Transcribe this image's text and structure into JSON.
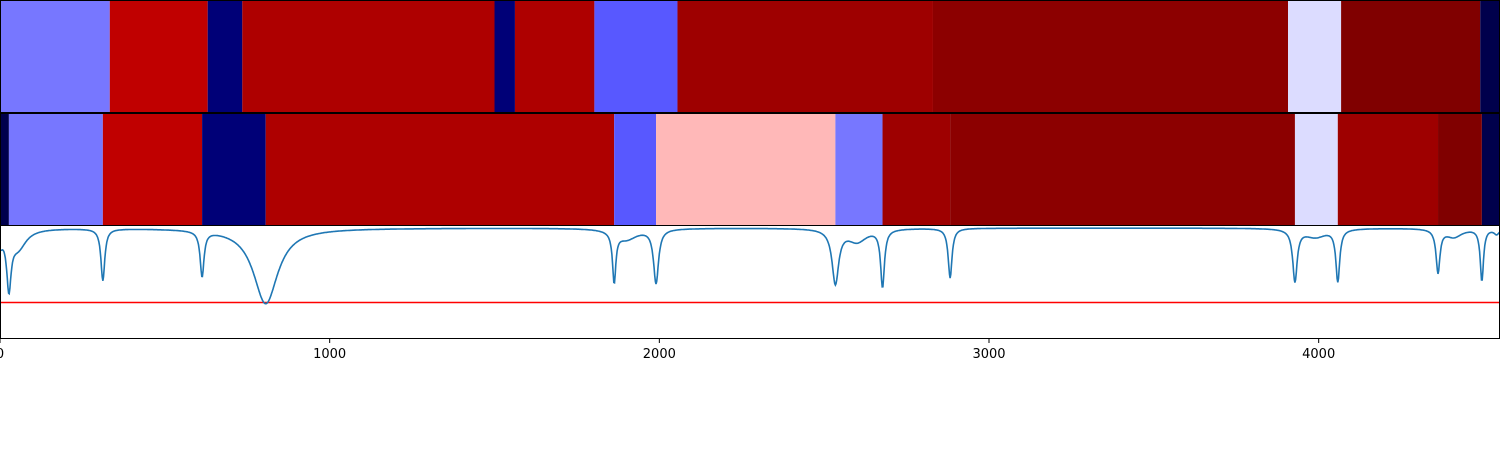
{
  "chart_data": [
    {
      "type": "heatmap",
      "xlim": [
        0,
        4550
      ],
      "segments": [
        {
          "start": 0,
          "end": 333,
          "color": "#7777ff"
        },
        {
          "start": 333,
          "end": 630,
          "color": "#c00000"
        },
        {
          "start": 630,
          "end": 735,
          "color": "#000077"
        },
        {
          "start": 735,
          "end": 1500,
          "color": "#ae0000"
        },
        {
          "start": 1500,
          "end": 1562,
          "color": "#000077"
        },
        {
          "start": 1562,
          "end": 1803,
          "color": "#ae0000"
        },
        {
          "start": 1803,
          "end": 2055,
          "color": "#5858ff"
        },
        {
          "start": 2055,
          "end": 2830,
          "color": "#9e0000"
        },
        {
          "start": 2830,
          "end": 3907,
          "color": "#8c0000"
        },
        {
          "start": 3907,
          "end": 4068,
          "color": "#dcdcff"
        },
        {
          "start": 4068,
          "end": 4490,
          "color": "#800000"
        },
        {
          "start": 4490,
          "end": 4550,
          "color": "#00004c"
        }
      ]
    },
    {
      "type": "heatmap",
      "xlim": [
        0,
        4550
      ],
      "segments": [
        {
          "start": 0,
          "end": 27,
          "color": "#00004c"
        },
        {
          "start": 27,
          "end": 312,
          "color": "#7777ff"
        },
        {
          "start": 312,
          "end": 613,
          "color": "#c00000"
        },
        {
          "start": 613,
          "end": 806,
          "color": "#000077"
        },
        {
          "start": 806,
          "end": 1863,
          "color": "#ae0000"
        },
        {
          "start": 1863,
          "end": 1990,
          "color": "#5858ff"
        },
        {
          "start": 1990,
          "end": 2534,
          "color": "#ffb8b8"
        },
        {
          "start": 2534,
          "end": 2677,
          "color": "#7777ff"
        },
        {
          "start": 2677,
          "end": 2882,
          "color": "#9e0000"
        },
        {
          "start": 2882,
          "end": 3928,
          "color": "#8c0000"
        },
        {
          "start": 3928,
          "end": 4058,
          "color": "#dcdcff"
        },
        {
          "start": 4058,
          "end": 4362,
          "color": "#9e0000"
        },
        {
          "start": 4362,
          "end": 4495,
          "color": "#800000"
        },
        {
          "start": 4495,
          "end": 4550,
          "color": "#00004c"
        }
      ]
    },
    {
      "type": "line",
      "xlim": [
        0,
        4550
      ],
      "ylim": [
        0,
        1
      ],
      "xticks": [
        "0",
        "1000",
        "2000",
        "3000",
        "4000"
      ],
      "xtick_values": [
        0,
        1000,
        2000,
        3000,
        4000
      ],
      "line_color": "#1f77b4",
      "threshold": 0.31,
      "threshold_color": "#ff0000",
      "baseline": 1.0,
      "dips": [
        {
          "x": 0,
          "depth": 0.12,
          "width": 10
        },
        {
          "x": 27,
          "depth": 0.5,
          "width": 8
        },
        {
          "x": 55,
          "depth": 0.18,
          "width": 30
        },
        {
          "x": 312,
          "depth": 0.48,
          "width": 7
        },
        {
          "x": 613,
          "depth": 0.42,
          "width": 7
        },
        {
          "x": 806,
          "depth": 0.7,
          "width": 45
        },
        {
          "x": 1863,
          "depth": 0.46,
          "width": 6
        },
        {
          "x": 1900,
          "depth": 0.1,
          "width": 40
        },
        {
          "x": 1990,
          "depth": 0.5,
          "width": 9
        },
        {
          "x": 2534,
          "depth": 0.5,
          "width": 12
        },
        {
          "x": 2600,
          "depth": 0.12,
          "width": 35
        },
        {
          "x": 2677,
          "depth": 0.53,
          "width": 7
        },
        {
          "x": 2882,
          "depth": 0.46,
          "width": 7
        },
        {
          "x": 3928,
          "depth": 0.48,
          "width": 8
        },
        {
          "x": 3990,
          "depth": 0.08,
          "width": 40
        },
        {
          "x": 4058,
          "depth": 0.48,
          "width": 7
        },
        {
          "x": 4362,
          "depth": 0.4,
          "width": 7
        },
        {
          "x": 4410,
          "depth": 0.08,
          "width": 30
        },
        {
          "x": 4495,
          "depth": 0.48,
          "width": 6
        },
        {
          "x": 4540,
          "depth": 0.05,
          "width": 10
        }
      ]
    }
  ]
}
